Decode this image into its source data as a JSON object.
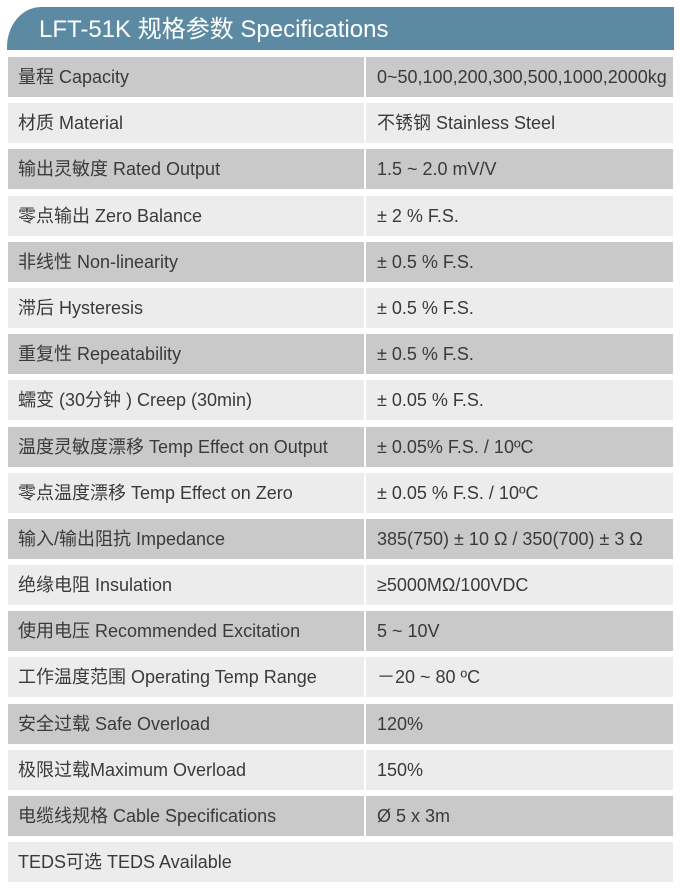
{
  "title": "LFT-51K 规格参数 Specifications",
  "colors": {
    "header": "#5c8aa2",
    "row_dark": "#c9c9c9",
    "row_light": "#ececec"
  },
  "rows": [
    {
      "label": "量程 Capacity",
      "value": "0~50,100,200,300,500,1000,2000kg"
    },
    {
      "label": "材质 Material",
      "value": "不锈钢 Stainless Steel"
    },
    {
      "label": "输出灵敏度 Rated Output",
      "value": "1.5 ~ 2.0 mV/V"
    },
    {
      "label": "零点输出  Zero Balance",
      "value": "± 2 % F.S."
    },
    {
      "label": "非线性 Non-linearity",
      "value": "± 0.5 % F.S."
    },
    {
      "label": "滞后 Hysteresis",
      "value": "± 0.5 % F.S."
    },
    {
      "label": "重复性 Repeatability",
      "value": "± 0.5 % F.S."
    },
    {
      "label": "蠕变 (30分钟 ) Creep (30min)",
      "value": "± 0.05 % F.S."
    },
    {
      "label": "温度灵敏度漂移 Temp Effect on Output",
      "value": "± 0.05% F.S. / 10ºC"
    },
    {
      "label": "零点温度漂移 Temp Effect on Zero",
      "value": "± 0.05 % F.S. / 10ºC"
    },
    {
      "label": "输入/输出阻抗 Impedance",
      "value": "385(750) ± 10 Ω  / 350(700) ± 3 Ω"
    },
    {
      "label": "绝缘电阻  Insulation",
      "value": "≥5000MΩ/100VDC"
    },
    {
      "label": "使用电压 Recommended Excitation",
      "value": "5 ~ 10V"
    },
    {
      "label": "工作温度范围 Operating Temp  Range",
      "value": "－20 ~ 80 ºC"
    },
    {
      "label": "安全过载 Safe Overload",
      "value": "120%"
    },
    {
      "label": "极限过载Maximum Overload",
      "value": "150%"
    },
    {
      "label": "电缆线规格 Cable Specifications",
      "value": "Ø 5 x 3m"
    },
    {
      "label": "TEDS可选 TEDS Available"
    }
  ]
}
